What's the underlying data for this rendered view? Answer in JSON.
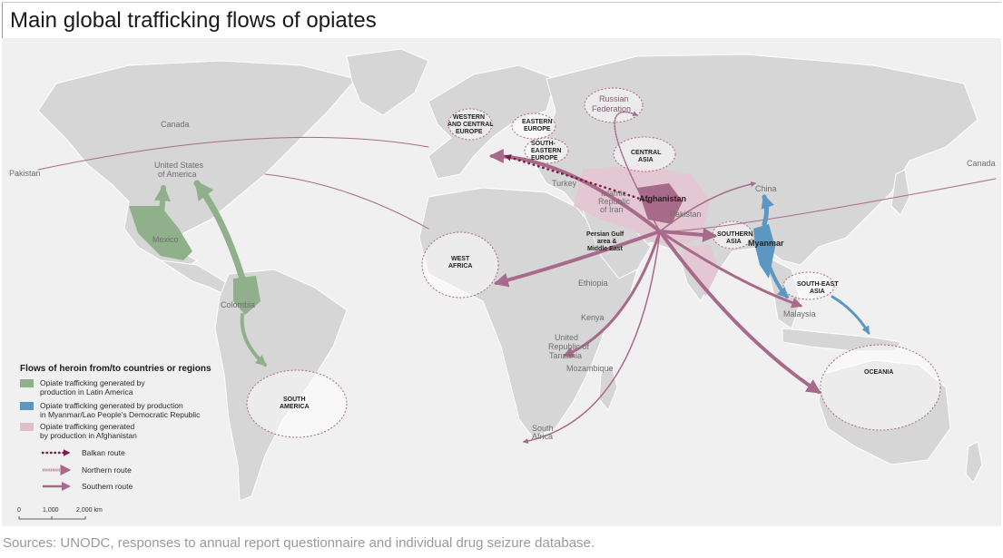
{
  "title": "Main global trafficking flows of opiates",
  "source": "Sources: UNODC, responses to annual report questionnaire and individual drug seizure database.",
  "colors": {
    "ocean": "#f0f0f0",
    "land": "#d6d6d6",
    "latin_america_flow": "#8fb08a",
    "myanmar_flow": "#5b97c2",
    "afghanistan_flow": "#a86a8a",
    "afghanistan_fill": "#e3c7d2",
    "balkan_route": "#7a1e4a"
  },
  "map_labels": {
    "canada_west": "Canada",
    "pakistan_west": "Pakistan",
    "canada_east": "Canada",
    "usa_line1": "United States",
    "usa_line2": "of America",
    "mexico": "Mexico",
    "colombia": "Colombia",
    "south_america_line1": "SOUTH",
    "south_america_line2": "AMERICA",
    "west_africa_line1": "WEST",
    "west_africa_line2": "AFRICA",
    "wce_line1": "WESTERN",
    "wce_line2": "AND CENTRAL",
    "wce_line3": "EUROPE",
    "ee_line1": "EASTERN",
    "ee_line2": "EUROPE",
    "see_line1": "SOUTH-",
    "see_line2": "EASTERN",
    "see_line3": "EUROPE",
    "russia_line1": "Russian",
    "russia_line2": "Federation",
    "central_asia_line1": "CENTRAL",
    "central_asia_line2": "ASIA",
    "turkey": "Turkey",
    "iran_line1": "Islamic",
    "iran_line2": "Republic",
    "iran_line3": "of Iran",
    "afghanistan": "Afghanistan",
    "pakistan": "Pakistan",
    "gulf_line1": "Persian Gulf",
    "gulf_line2": "area &",
    "gulf_line3": "Middle East",
    "southern_asia_line1": "SOUTHERN",
    "southern_asia_line2": "ASIA",
    "china": "China",
    "myanmar": "Myanmar",
    "sea_line1": "SOUTH-EAST",
    "sea_line2": "ASIA",
    "malaysia": "Malaysia",
    "ethiopia": "Ethiopia",
    "kenya": "Kenya",
    "tanzania_line1": "United",
    "tanzania_line2": "Republic of",
    "tanzania_line3": "Tanzania",
    "mozambique": "Mozambique",
    "south_africa_line1": "South",
    "south_africa_line2": "Africa",
    "oceania": "OCEANIA"
  },
  "legend": {
    "heading": "Flows of heroin from/to countries or regions",
    "item1_line1": "Opiate trafficking generated by",
    "item1_line2": "production in Latin America",
    "item2_line1": "Opiate trafficking generated by production",
    "item2_line2": "in Myanmar/Lao People's Democratic Republic",
    "item3_line1": "Opiate trafficking generated",
    "item3_line2": "by production in Afghanistan",
    "balkan": "Balkan route",
    "northern": "Northern route",
    "southern": "Southern route"
  },
  "scale_bar": {
    "t0": "0",
    "t1": "1,000",
    "t2": "2,000 km"
  }
}
